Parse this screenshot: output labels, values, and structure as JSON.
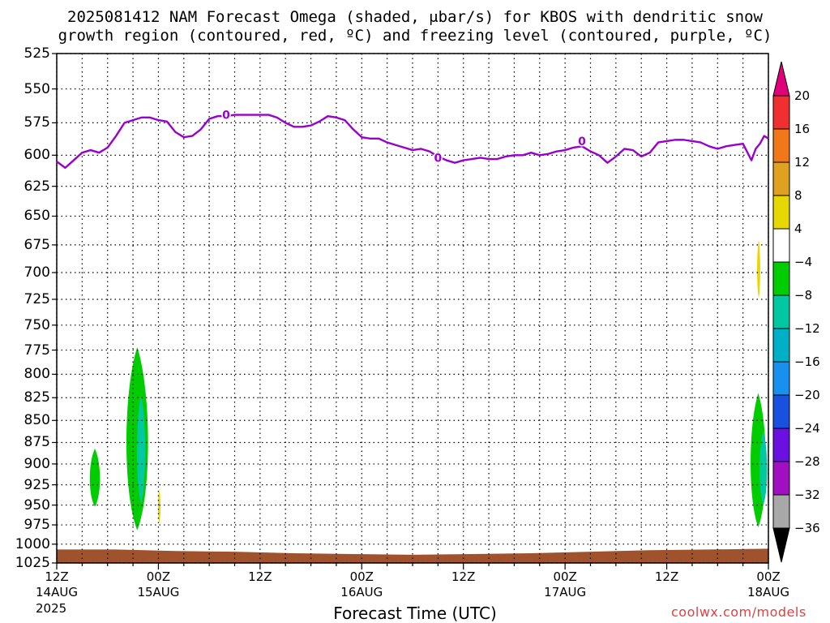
{
  "title_line1": "2025081412 NAM Forecast Omega (shaded, μbar/s) for KBOS with dendritic snow",
  "title_line2": "growth region (contoured, red, ºC) and freezing level (contoured, purple, ºC)",
  "xaxis_title": "Forecast Time (UTC)",
  "credit": "coolwx.com/models",
  "year_label": "2025",
  "colors": {
    "freezing_line": "#9a00cc",
    "terrain": "#a0522d",
    "omega_green": "#00cc00",
    "omega_teal": "#00c8a0",
    "omega_yellow": "#e6d800"
  },
  "chart_data": {
    "type": "heatmap",
    "y_axis": {
      "label": "",
      "unit": "hPa",
      "scale": "pressure-inverted",
      "ticks": [
        525,
        550,
        575,
        600,
        625,
        650,
        675,
        700,
        725,
        750,
        775,
        800,
        825,
        850,
        875,
        900,
        925,
        950,
        975,
        1000,
        1025
      ],
      "ylim": [
        525,
        1025
      ]
    },
    "x_axis": {
      "label": "Forecast Time (UTC)",
      "ticks": [
        {
          "label": "12Z",
          "date": "14AUG"
        },
        {
          "label": "00Z",
          "date": "15AUG"
        },
        {
          "label": "12Z",
          "date": ""
        },
        {
          "label": "00Z",
          "date": "16AUG"
        },
        {
          "label": "12Z",
          "date": ""
        },
        {
          "label": "00Z",
          "date": "17AUG"
        },
        {
          "label": "12Z",
          "date": ""
        },
        {
          "label": "00Z",
          "date": "18AUG"
        }
      ],
      "range_hours": [
        0,
        84
      ]
    },
    "grid": true,
    "freezing_level": {
      "name": "freezing level",
      "contour_label": "0",
      "points": [
        [
          0,
          605
        ],
        [
          1,
          610
        ],
        [
          2,
          604
        ],
        [
          3,
          598
        ],
        [
          4,
          596
        ],
        [
          5,
          598
        ],
        [
          6,
          594
        ],
        [
          7,
          585
        ],
        [
          8,
          575
        ],
        [
          9,
          573
        ],
        [
          10,
          571
        ],
        [
          11,
          571
        ],
        [
          12,
          573
        ],
        [
          13,
          574
        ],
        [
          14,
          582
        ],
        [
          15,
          586
        ],
        [
          16,
          585
        ],
        [
          17,
          580
        ],
        [
          18,
          572
        ],
        [
          19,
          570
        ],
        [
          20,
          570
        ],
        [
          21,
          569
        ],
        [
          22,
          569
        ],
        [
          23,
          569
        ],
        [
          24,
          569
        ],
        [
          25,
          569
        ],
        [
          26,
          571
        ],
        [
          27,
          575
        ],
        [
          28,
          578
        ],
        [
          29,
          578
        ],
        [
          30,
          577
        ],
        [
          31,
          574
        ],
        [
          32,
          570
        ],
        [
          33,
          571
        ],
        [
          34,
          573
        ],
        [
          35,
          580
        ],
        [
          36,
          586
        ],
        [
          37,
          587
        ],
        [
          38,
          587
        ],
        [
          39,
          590
        ],
        [
          40,
          592
        ],
        [
          41,
          594
        ],
        [
          42,
          596
        ],
        [
          43,
          595
        ],
        [
          44,
          597
        ],
        [
          45,
          601
        ],
        [
          46,
          604
        ],
        [
          47,
          606
        ],
        [
          48,
          604
        ],
        [
          49,
          603
        ],
        [
          50,
          602
        ],
        [
          51,
          603
        ],
        [
          52,
          603
        ],
        [
          53,
          601
        ],
        [
          54,
          600
        ],
        [
          55,
          600
        ],
        [
          56,
          598
        ],
        [
          57,
          600
        ],
        [
          58,
          599
        ],
        [
          59,
          597
        ],
        [
          60,
          596
        ],
        [
          61,
          594
        ],
        [
          62,
          593
        ],
        [
          63,
          597
        ],
        [
          64,
          600
        ],
        [
          65,
          606
        ],
        [
          66,
          601
        ],
        [
          67,
          595
        ],
        [
          68,
          596
        ],
        [
          69,
          601
        ],
        [
          70,
          598
        ],
        [
          71,
          590
        ],
        [
          72,
          589
        ],
        [
          73,
          588
        ],
        [
          74,
          588
        ],
        [
          75,
          589
        ],
        [
          76,
          590
        ],
        [
          77,
          593
        ],
        [
          78,
          595
        ],
        [
          79,
          593
        ],
        [
          80,
          592
        ],
        [
          81,
          591
        ],
        [
          82,
          604
        ],
        [
          82.5,
          595
        ],
        [
          83,
          591
        ],
        [
          83.5,
          585
        ],
        [
          84,
          587
        ]
      ]
    },
    "omega_regions": [
      {
        "value_range": [
          -8,
          -4
        ],
        "color": "green",
        "hours": [
          3.7,
          5.3
        ],
        "pressure": [
          882,
          952
        ]
      },
      {
        "value_range": [
          -8,
          -4
        ],
        "color": "green",
        "hours": [
          7.8,
          11.2
        ],
        "pressure": [
          772,
          982
        ]
      },
      {
        "value_range": [
          -12,
          -8
        ],
        "color": "teal",
        "hours": [
          9.3,
          10.6
        ],
        "pressure": [
          822,
          948
        ]
      },
      {
        "value_range": [
          4,
          8
        ],
        "color": "yellow",
        "hours": [
          11.9,
          12.3
        ],
        "pressure": [
          932,
          972
        ]
      },
      {
        "value_range": [
          4,
          8
        ],
        "color": "yellow",
        "hours": [
          82.6,
          83.1
        ],
        "pressure": [
          670,
          724
        ]
      },
      {
        "value_range": [
          -8,
          -4
        ],
        "color": "green",
        "hours": [
          81.6,
          84
        ],
        "pressure": [
          820,
          978
        ]
      },
      {
        "value_range": [
          -12,
          -8
        ],
        "color": "teal",
        "hours": [
          82.8,
          84
        ],
        "pressure": [
          862,
          950
        ]
      }
    ],
    "terrain": {
      "surface_pressure": [
        1007,
        1007,
        1009,
        1010,
        1012,
        1013,
        1014,
        1013,
        1012,
        1010,
        1008,
        1007,
        1006
      ]
    },
    "colorbar": {
      "unit": "μbar/s",
      "labels": [
        "20",
        "16",
        "12",
        "8",
        "4",
        "−4",
        "−8",
        "−12",
        "−16",
        "−20",
        "−24",
        "−28",
        "−32",
        "−36"
      ],
      "colors": [
        "#e0007a",
        "#f03030",
        "#f07818",
        "#e0a020",
        "#e6d800",
        "#ffffff",
        "#00cc00",
        "#00c8a0",
        "#00b0c8",
        "#1890f0",
        "#1850e0",
        "#6a10e0",
        "#a010c0",
        "#a8a8a8",
        "#000000"
      ]
    }
  }
}
